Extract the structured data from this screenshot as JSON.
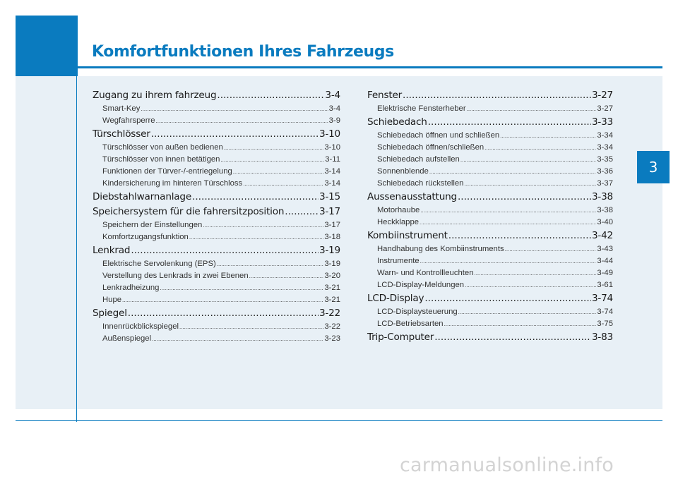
{
  "chapter": {
    "title": "Komfortfunktionen Ihres Fahrzeugs",
    "tab_number": "3"
  },
  "colors": {
    "accent": "#0a7bbf",
    "panel": "#e8f0f6"
  },
  "toc_left": [
    {
      "level": "main",
      "label": "Zugang zu ihrem fahrzeug",
      "page": "3-4"
    },
    {
      "level": "sub",
      "label": "Smart-Key",
      "page": "3-4"
    },
    {
      "level": "sub",
      "label": "Wegfahrsperre",
      "page": "3-9"
    },
    {
      "level": "main",
      "label": "Türschlösser",
      "page": "3-10"
    },
    {
      "level": "sub",
      "label": "Türschlösser von außen bedienen",
      "page": "3-10"
    },
    {
      "level": "sub",
      "label": "Türschlösser von innen betätigen",
      "page": "3-11"
    },
    {
      "level": "sub",
      "label": "Funktionen der Türver-/-entriegelung",
      "page": "3-14"
    },
    {
      "level": "sub",
      "label": "Kindersicherung im hinteren Türschloss",
      "page": "3-14"
    },
    {
      "level": "main",
      "label": "Diebstahlwarnanlage",
      "page": "3-15"
    },
    {
      "level": "main",
      "label": "Speichersystem für die fahrersitzposition",
      "page": "3-17"
    },
    {
      "level": "sub",
      "label": "Speichern der Einstellungen",
      "page": "3-17"
    },
    {
      "level": "sub",
      "label": "Komfortzugangsfunktion",
      "page": "3-18"
    },
    {
      "level": "main",
      "label": "Lenkrad",
      "page": "3-19"
    },
    {
      "level": "sub",
      "label": "Elektrische Servolenkung (EPS)",
      "page": "3-19"
    },
    {
      "level": "sub",
      "label": "Verstellung des Lenkrads in zwei Ebenen",
      "page": "3-20"
    },
    {
      "level": "sub",
      "label": "Lenkradheizung",
      "page": "3-21"
    },
    {
      "level": "sub",
      "label": "Hupe",
      "page": "3-21"
    },
    {
      "level": "main",
      "label": "Spiegel",
      "page": "3-22"
    },
    {
      "level": "sub",
      "label": "Innenrückblickspiegel",
      "page": "3-22"
    },
    {
      "level": "sub",
      "label": "Außenspiegel",
      "page": "3-23"
    }
  ],
  "toc_right": [
    {
      "level": "main",
      "label": "Fenster",
      "page": "3-27"
    },
    {
      "level": "sub",
      "label": "Elektrische Fensterheber",
      "page": "3-27"
    },
    {
      "level": "main",
      "label": "Schiebedach",
      "page": "3-33"
    },
    {
      "level": "sub",
      "label": "Schiebedach öffnen und schließen",
      "page": "3-34"
    },
    {
      "level": "sub",
      "label": "Schiebedach öffnen/schließen",
      "page": "3-34"
    },
    {
      "level": "sub",
      "label": "Schiebedach aufstellen",
      "page": "3-35"
    },
    {
      "level": "sub",
      "label": "Sonnenblende",
      "page": "3-36"
    },
    {
      "level": "sub",
      "label": "Schiebedach rückstellen",
      "page": "3-37"
    },
    {
      "level": "main",
      "label": "Aussenausstattung",
      "page": "3-38"
    },
    {
      "level": "sub",
      "label": "Motorhaube",
      "page": "3-38"
    },
    {
      "level": "sub",
      "label": "Heckklappe",
      "page": "3-40"
    },
    {
      "level": "main",
      "label": "Kombiinstrument",
      "page": "3-42"
    },
    {
      "level": "sub",
      "label": "Handhabung des Kombiinstruments",
      "page": "3-43"
    },
    {
      "level": "sub",
      "label": "Instrumente",
      "page": "3-44"
    },
    {
      "level": "sub",
      "label": "Warn- und Kontrollleuchten",
      "page": "3-49"
    },
    {
      "level": "sub",
      "label": "LCD-Display-Meldungen",
      "page": "3-61"
    },
    {
      "level": "main",
      "label": "LCD-Display",
      "page": "3-74"
    },
    {
      "level": "sub",
      "label": "LCD-Displaysteuerung",
      "page": "3-74"
    },
    {
      "level": "sub",
      "label": "LCD-Betriebsarten",
      "page": "3-75"
    },
    {
      "level": "main",
      "label": "Trip-Computer",
      "page": "3-83"
    }
  ],
  "watermark": "carmanualsonline.info"
}
